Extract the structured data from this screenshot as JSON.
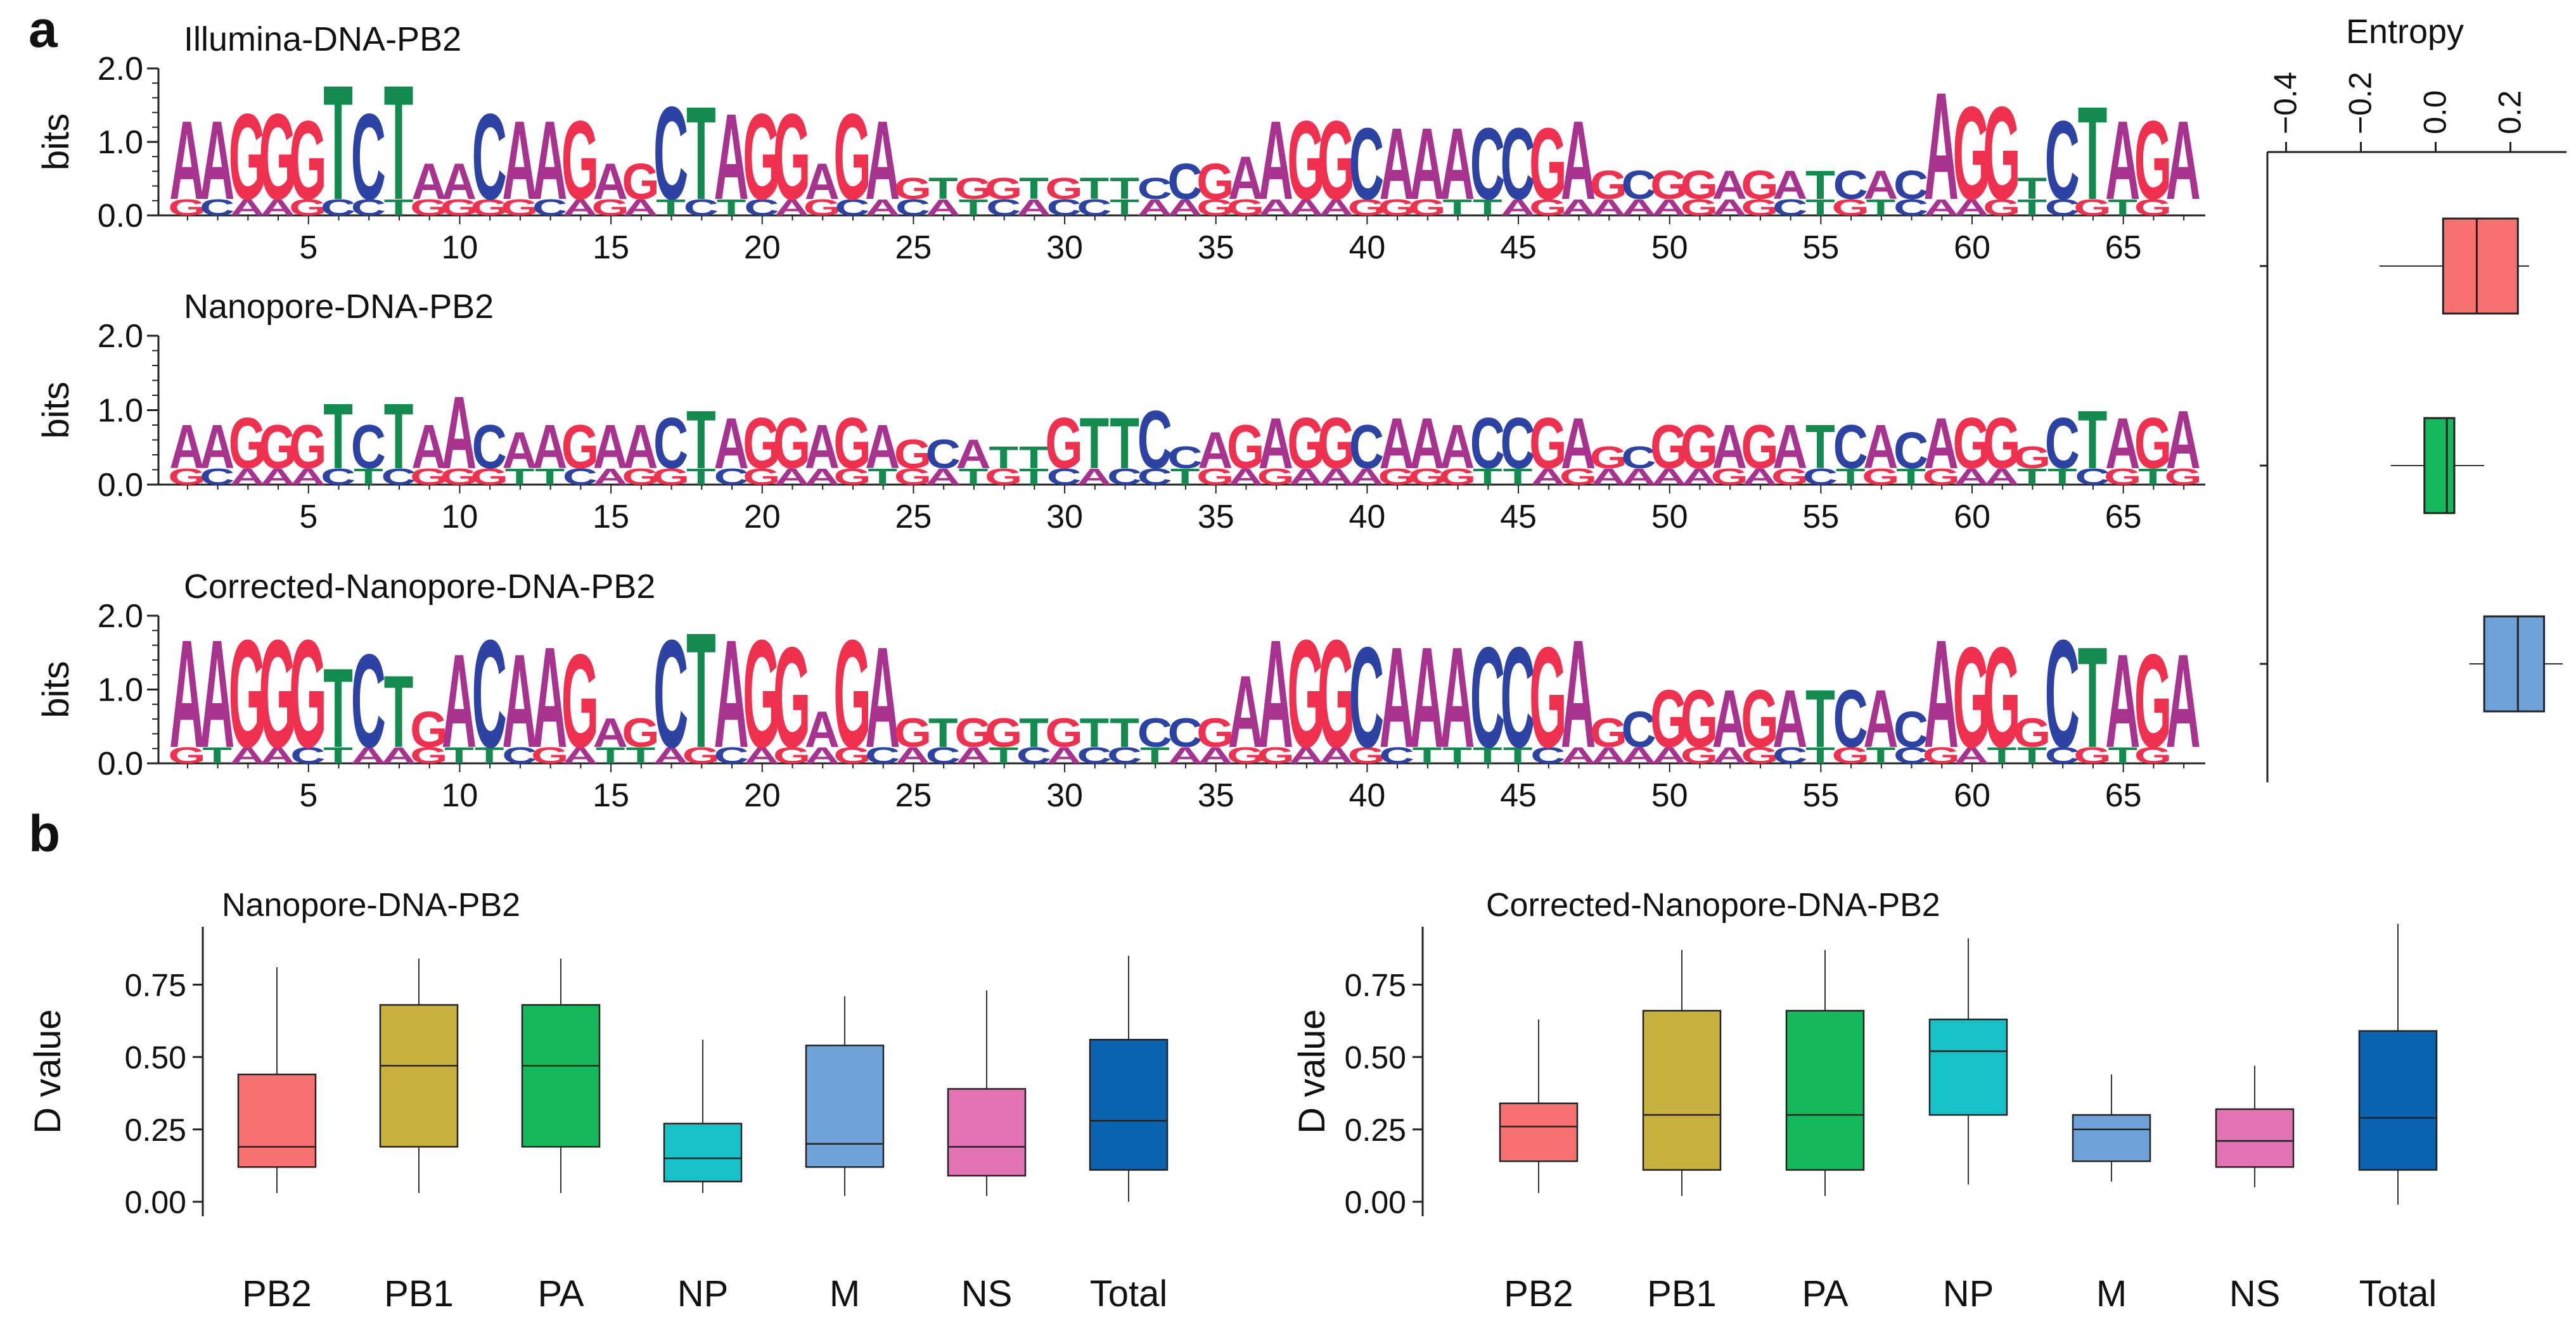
{
  "figure": {
    "panel_a_label": "a",
    "panel_b_label": "b"
  },
  "colors": {
    "A": "#a8338f",
    "C": "#2d43a3",
    "G": "#f0304f",
    "T": "#138b4f",
    "box_fill": [
      "#f87171",
      "#c8b03f",
      "#15b85a",
      "#16c1c7",
      "#6ea2d8",
      "#e274b4",
      "#0a62b0"
    ]
  },
  "chart_data": [
    {
      "type": "sequence-logo",
      "title": "Illumina-DNA-PB2",
      "ylabel": "bits",
      "ylim": [
        0,
        2.0
      ],
      "yticks": [
        "0.0",
        "1.0",
        "2.0"
      ],
      "xticks": [
        5,
        10,
        15,
        20,
        25,
        30,
        35,
        40,
        45,
        50,
        55,
        60,
        65
      ],
      "primary_sequence": "AAGGGTCTAACAAGAGCTAGGAGAGTGGTGTTCCGAAGGCAAACCGAGCGGAGATCACAGGTCTAGA",
      "secondary_sequence": "GCAAGCCTGGGGCAGATCTCAGCACATCACCTAAGGAAAGGGTTAGAAAAGAGCTGTCAAGTCGTG",
      "heights": [
        1.1,
        1.1,
        1.2,
        1.2,
        1.1,
        1.6,
        1.2,
        1.6,
        0.5,
        0.5,
        1.2,
        1.1,
        1.1,
        1.1,
        0.5,
        0.5,
        1.3,
        1.3,
        1.2,
        1.2,
        1.2,
        0.5,
        1.2,
        1.1,
        0.3,
        0.3,
        0.3,
        0.3,
        0.3,
        0.3,
        0.3,
        0.3,
        0.3,
        0.5,
        0.5,
        0.6,
        1.1,
        1.1,
        1.1,
        1.0,
        1.0,
        1.0,
        1.0,
        1.0,
        1.0,
        1.0,
        1.1,
        0.4,
        0.4,
        0.4,
        0.4,
        0.4,
        0.4,
        0.4,
        0.4,
        0.4,
        0.4,
        0.4,
        1.5,
        1.3,
        1.3,
        0.3,
        1.1,
        1.3,
        1.1,
        1.1,
        1.1
      ]
    },
    {
      "type": "sequence-logo",
      "title": "Nanopore-DNA-PB2",
      "ylabel": "bits",
      "ylim": [
        0,
        2.0
      ],
      "yticks": [
        "0.0",
        "1.0",
        "2.0"
      ],
      "xticks": [
        5,
        10,
        15,
        20,
        25,
        30,
        35,
        40,
        45,
        50,
        55,
        60,
        65
      ],
      "primary_sequence": "AAGGGTCTAACAAGAACTAGGAGAGCATTGTTCCAGAGGCAAACCGAGCGGAGATCACAGGGCTAGA",
      "secondary_sequence": "GCAAACTCGGGTTCAGGTCGAAGTGATGTCACCTGAGAAAGGGTTAGAAAAGAGCTGTGAATTCGTG",
      "heights": [
        0.6,
        0.6,
        0.7,
        0.6,
        0.6,
        0.9,
        0.6,
        0.9,
        0.6,
        1.0,
        0.6,
        0.5,
        0.6,
        0.6,
        0.6,
        0.6,
        0.7,
        0.8,
        0.7,
        0.7,
        0.7,
        0.6,
        0.7,
        0.6,
        0.4,
        0.4,
        0.4,
        0.3,
        0.3,
        0.7,
        0.7,
        0.7,
        0.8,
        0.3,
        0.5,
        0.6,
        0.7,
        0.7,
        0.7,
        0.6,
        0.7,
        0.7,
        0.6,
        0.7,
        0.7,
        0.7,
        0.7,
        0.3,
        0.3,
        0.6,
        0.6,
        0.6,
        0.6,
        0.6,
        0.6,
        0.6,
        0.6,
        0.5,
        0.7,
        0.7,
        0.7,
        0.3,
        0.7,
        0.8,
        0.7,
        0.7,
        0.8
      ]
    },
    {
      "type": "sequence-logo",
      "title": "Corrected-Nanopore-DNA-PB2",
      "ylabel": "bits",
      "ylim": [
        0,
        2.0
      ],
      "yticks": [
        "0.0",
        "1.0",
        "2.0"
      ],
      "xticks": [
        5,
        10,
        15,
        20,
        25,
        30,
        35,
        40,
        45,
        50,
        55,
        60,
        65
      ],
      "primary_sequence": "AAGGGTCTGACAAGAGCTAGGAGAGTGGTGTTCCGAAGGCAAACCGAGCGGAGATCACAGGGCTAGA",
      "secondary_sequence": "GTAACTAAGTTCGATTAGCAGAGCACATCACCTAAGGAAGCTTTTCAAAAGAGCTGTCGATTCGTG",
      "heights": [
        1.5,
        1.5,
        1.5,
        1.5,
        1.5,
        1.1,
        1.3,
        1.0,
        0.5,
        1.3,
        1.5,
        1.3,
        1.4,
        1.3,
        0.4,
        0.4,
        1.5,
        1.6,
        1.5,
        1.5,
        1.4,
        0.5,
        1.5,
        1.4,
        0.4,
        0.4,
        0.4,
        0.4,
        0.4,
        0.4,
        0.4,
        0.4,
        0.4,
        0.4,
        0.4,
        1.0,
        1.5,
        1.5,
        1.5,
        1.4,
        1.4,
        1.4,
        1.4,
        1.4,
        1.4,
        1.4,
        1.5,
        0.4,
        0.5,
        0.8,
        0.8,
        0.8,
        0.8,
        0.8,
        0.8,
        0.8,
        0.8,
        0.5,
        1.5,
        1.4,
        1.4,
        0.4,
        1.5,
        1.4,
        1.3,
        1.3,
        1.3
      ]
    },
    {
      "type": "boxplot",
      "title": "Entropy",
      "orientation": "horizontal",
      "xticks": [
        "−0.4",
        "−0.2",
        "0.0",
        "0.2"
      ],
      "xlim": [
        -0.45,
        0.35
      ],
      "series": [
        {
          "name": "Illumina-DNA-PB2",
          "whisker_low": -0.15,
          "q1": 0.02,
          "median": 0.11,
          "q3": 0.22,
          "whisker_high": 0.25
        },
        {
          "name": "Nanopore-DNA-PB2",
          "whisker_low": -0.12,
          "q1": -0.03,
          "median": 0.03,
          "q3": 0.05,
          "whisker_high": 0.13
        },
        {
          "name": "Corrected-Nanopore-DNA-PB2",
          "whisker_low": 0.09,
          "q1": 0.13,
          "median": 0.22,
          "q3": 0.29,
          "whisker_high": 0.34
        }
      ]
    },
    {
      "type": "boxplot",
      "title": "Nanopore-DNA-PB2",
      "ylabel": "D value",
      "ylim": [
        -0.05,
        0.95
      ],
      "yticks": [
        "0.00",
        "0.25",
        "0.50",
        "0.75"
      ],
      "categories": [
        "PB2",
        "PB1",
        "PA",
        "NP",
        "M",
        "NS",
        "Total"
      ],
      "series": [
        {
          "name": "PB2",
          "whisker_low": 0.03,
          "q1": 0.12,
          "median": 0.19,
          "q3": 0.44,
          "whisker_high": 0.81
        },
        {
          "name": "PB1",
          "whisker_low": 0.03,
          "q1": 0.19,
          "median": 0.47,
          "q3": 0.68,
          "whisker_high": 0.84
        },
        {
          "name": "PA",
          "whisker_low": 0.03,
          "q1": 0.19,
          "median": 0.47,
          "q3": 0.68,
          "whisker_high": 0.84
        },
        {
          "name": "NP",
          "whisker_low": 0.03,
          "q1": 0.07,
          "median": 0.15,
          "q3": 0.27,
          "whisker_high": 0.56
        },
        {
          "name": "M",
          "whisker_low": 0.02,
          "q1": 0.12,
          "median": 0.2,
          "q3": 0.54,
          "whisker_high": 0.71
        },
        {
          "name": "NS",
          "whisker_low": 0.02,
          "q1": 0.09,
          "median": 0.19,
          "q3": 0.39,
          "whisker_high": 0.73
        },
        {
          "name": "Total",
          "whisker_low": 0.0,
          "q1": 0.11,
          "median": 0.28,
          "q3": 0.56,
          "whisker_high": 0.85
        }
      ]
    },
    {
      "type": "boxplot",
      "title": "Corrected-Nanopore-DNA-PB2",
      "ylabel": "D value",
      "ylim": [
        -0.05,
        0.95
      ],
      "yticks": [
        "0.00",
        "0.25",
        "0.50",
        "0.75"
      ],
      "categories": [
        "PB2",
        "PB1",
        "PA",
        "NP",
        "M",
        "NS",
        "Total"
      ],
      "series": [
        {
          "name": "PB2",
          "whisker_low": 0.03,
          "q1": 0.14,
          "median": 0.26,
          "q3": 0.34,
          "whisker_high": 0.63
        },
        {
          "name": "PB1",
          "whisker_low": 0.02,
          "q1": 0.11,
          "median": 0.3,
          "q3": 0.66,
          "whisker_high": 0.87
        },
        {
          "name": "PA",
          "whisker_low": 0.02,
          "q1": 0.11,
          "median": 0.3,
          "q3": 0.66,
          "whisker_high": 0.87
        },
        {
          "name": "NP",
          "whisker_low": 0.06,
          "q1": 0.3,
          "median": 0.52,
          "q3": 0.63,
          "whisker_high": 0.91
        },
        {
          "name": "M",
          "whisker_low": 0.07,
          "q1": 0.14,
          "median": 0.25,
          "q3": 0.3,
          "whisker_high": 0.44
        },
        {
          "name": "NS",
          "whisker_low": 0.05,
          "q1": 0.12,
          "median": 0.21,
          "q3": 0.32,
          "whisker_high": 0.47
        },
        {
          "name": "Total",
          "whisker_low": -0.01,
          "q1": 0.11,
          "median": 0.29,
          "q3": 0.59,
          "whisker_high": 0.96
        }
      ]
    }
  ]
}
